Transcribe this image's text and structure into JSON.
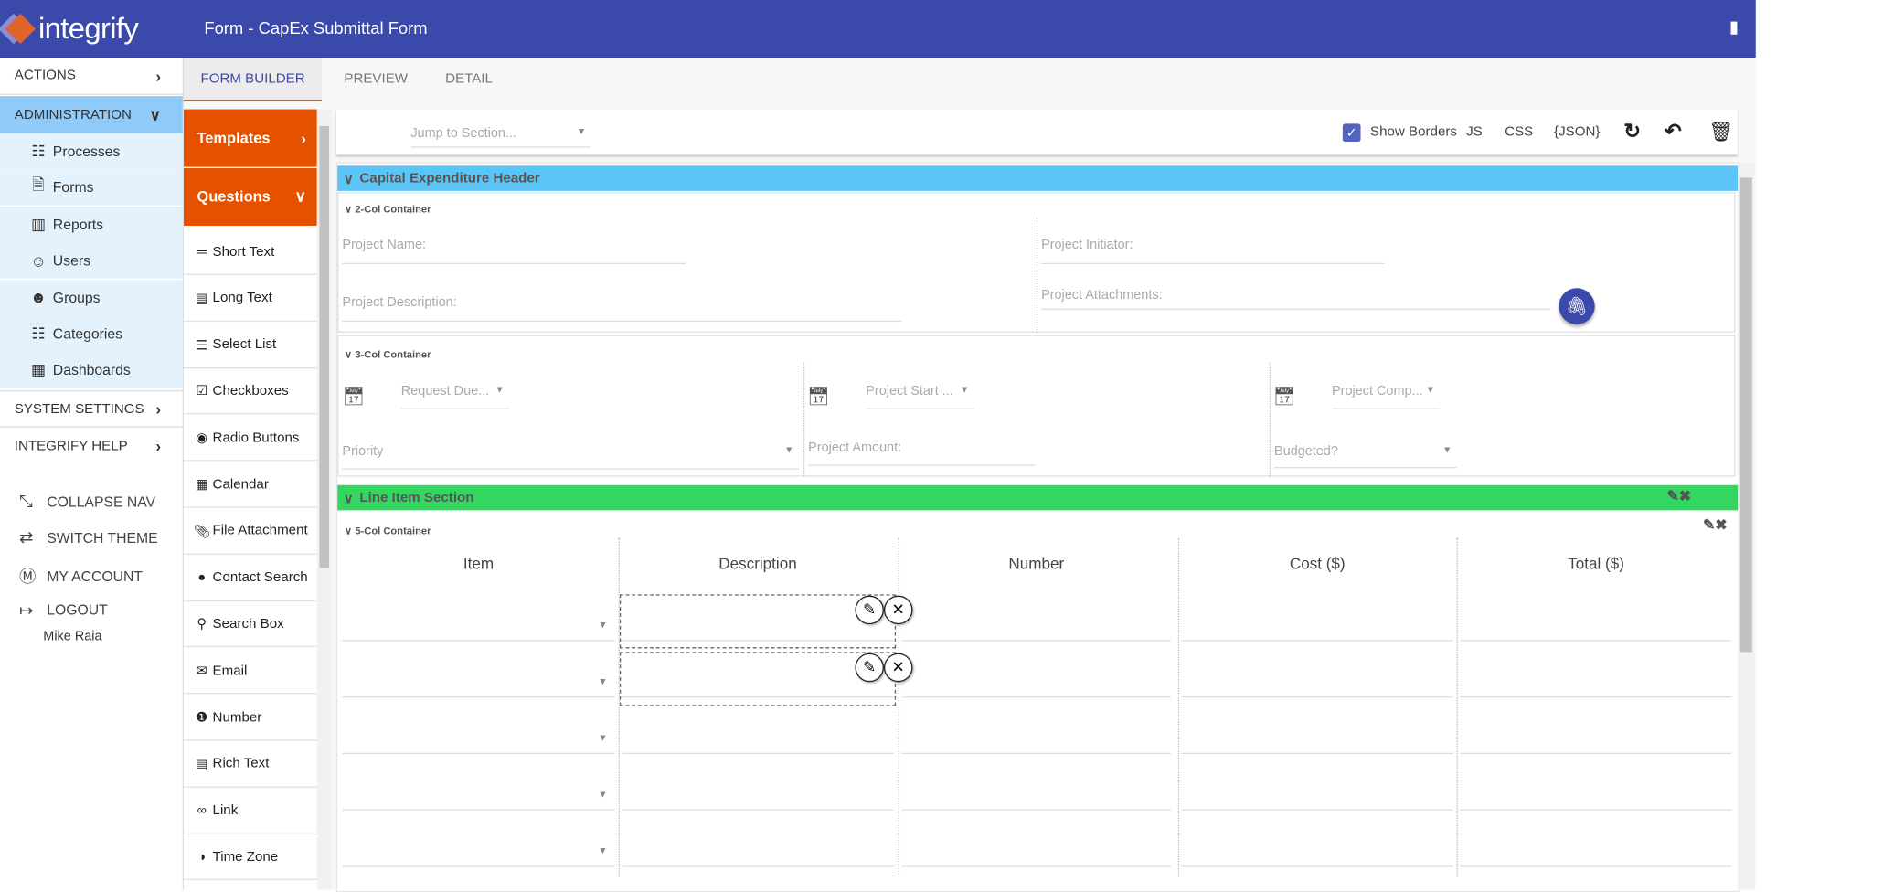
{
  "app": {
    "logo": "integrify",
    "title": "Form - CapEx Submittal Form"
  },
  "sidebar": {
    "actions": "ACTIONS",
    "administration": "ADMINISTRATION",
    "admin_items": [
      {
        "label": "Processes",
        "icon": "sitemap-icon"
      },
      {
        "label": "Forms",
        "icon": "form-icon"
      },
      {
        "label": "Reports",
        "icon": "report-icon"
      },
      {
        "label": "Users",
        "icon": "user-icon"
      },
      {
        "label": "Groups",
        "icon": "group-icon"
      },
      {
        "label": "Categories",
        "icon": "category-icon"
      },
      {
        "label": "Dashboards",
        "icon": "dashboard-icon"
      }
    ],
    "system_settings": "SYSTEM SETTINGS",
    "integrify_help": "INTEGRIFY HELP",
    "utils": [
      {
        "label": "COLLAPSE NAV",
        "icon": "collapse-icon"
      },
      {
        "label": "SWITCH THEME",
        "icon": "shuffle-icon"
      },
      {
        "label": "MY ACCOUNT",
        "icon": "account-icon"
      },
      {
        "label": "LOGOUT",
        "icon": "logout-icon"
      }
    ],
    "user": "Mike Raia",
    "active_color": "#90caf9",
    "sub_bg": "#e3f2fd"
  },
  "tabs": [
    "FORM BUILDER",
    "PREVIEW",
    "DETAIL"
  ],
  "questions_panel": {
    "templates": "Templates",
    "questions": "Questions",
    "items": [
      {
        "label": "Short Text",
        "icon": "short-text-icon"
      },
      {
        "label": "Long Text",
        "icon": "long-text-icon"
      },
      {
        "label": "Select List",
        "icon": "list-icon"
      },
      {
        "label": "Checkboxes",
        "icon": "checkbox-icon"
      },
      {
        "label": "Radio Buttons",
        "icon": "radio-icon"
      },
      {
        "label": "Calendar",
        "icon": "calendar-icon"
      },
      {
        "label": "File Attachment",
        "icon": "paperclip-icon"
      },
      {
        "label": "Contact Search",
        "icon": "person-icon"
      },
      {
        "label": "Search Box",
        "icon": "search-icon"
      },
      {
        "label": "Email",
        "icon": "email-icon"
      },
      {
        "label": "Number",
        "icon": "number-icon"
      },
      {
        "label": "Rich Text",
        "icon": "rich-text-icon"
      },
      {
        "label": "Link",
        "icon": "link-icon"
      },
      {
        "label": "Time Zone",
        "icon": "timezone-icon"
      }
    ],
    "accent": "#e65100"
  },
  "toolbar": {
    "jump_placeholder": "Jump to Section...",
    "show_borders": "Show Borders",
    "show_borders_checked": true,
    "js": "JS",
    "css": "CSS",
    "json": "{JSON}"
  },
  "form": {
    "section1": {
      "title": "Capital Expenditure Header",
      "color": "#5bc5f5"
    },
    "container2": {
      "label": "2-Col Container",
      "fields": [
        "Project Name:",
        "Project Initiator:",
        "Project Description:",
        "Project Attachments:"
      ]
    },
    "container3": {
      "label": "3-Col Container",
      "fields": [
        "Request Due...",
        "Project Start ...",
        "Project Comp...",
        "Priority",
        "Project Amount:",
        "Budgeted?"
      ]
    },
    "section2": {
      "title": "Line Item Section",
      "color": "#33d65f"
    },
    "container5": {
      "label": "5-Col Container",
      "columns": [
        "Item",
        "Description",
        "Number",
        "Cost ($)",
        "Total ($)"
      ]
    }
  }
}
